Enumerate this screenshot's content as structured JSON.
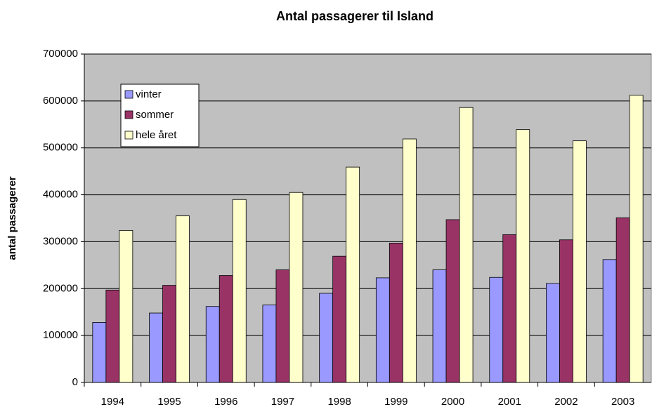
{
  "chart_data": {
    "type": "bar",
    "title": "Antal passagerer til Island",
    "y_label": "antal passagerer",
    "categories": [
      "1994",
      "1995",
      "1996",
      "1997",
      "1998",
      "1999",
      "2000",
      "2001",
      "2002",
      "2003"
    ],
    "series": [
      {
        "name": "vinter",
        "color": "#9999ff",
        "values": [
          128000,
          148000,
          162000,
          165000,
          190000,
          223000,
          240000,
          224000,
          211000,
          262000
        ]
      },
      {
        "name": "sommer",
        "color": "#993366",
        "values": [
          197000,
          207000,
          228000,
          240000,
          269000,
          297000,
          347000,
          315000,
          304000,
          351000
        ]
      },
      {
        "name": "hele året",
        "color": "#ffffcc",
        "values": [
          324000,
          355000,
          390000,
          405000,
          459000,
          519000,
          586000,
          539000,
          515000,
          612000
        ]
      }
    ],
    "ylim": [
      0,
      700000
    ],
    "yticks": [
      0,
      100000,
      200000,
      300000,
      400000,
      500000,
      600000,
      700000
    ],
    "grid": true,
    "legend": "upper left",
    "plot_background": "#c0c0c0"
  }
}
